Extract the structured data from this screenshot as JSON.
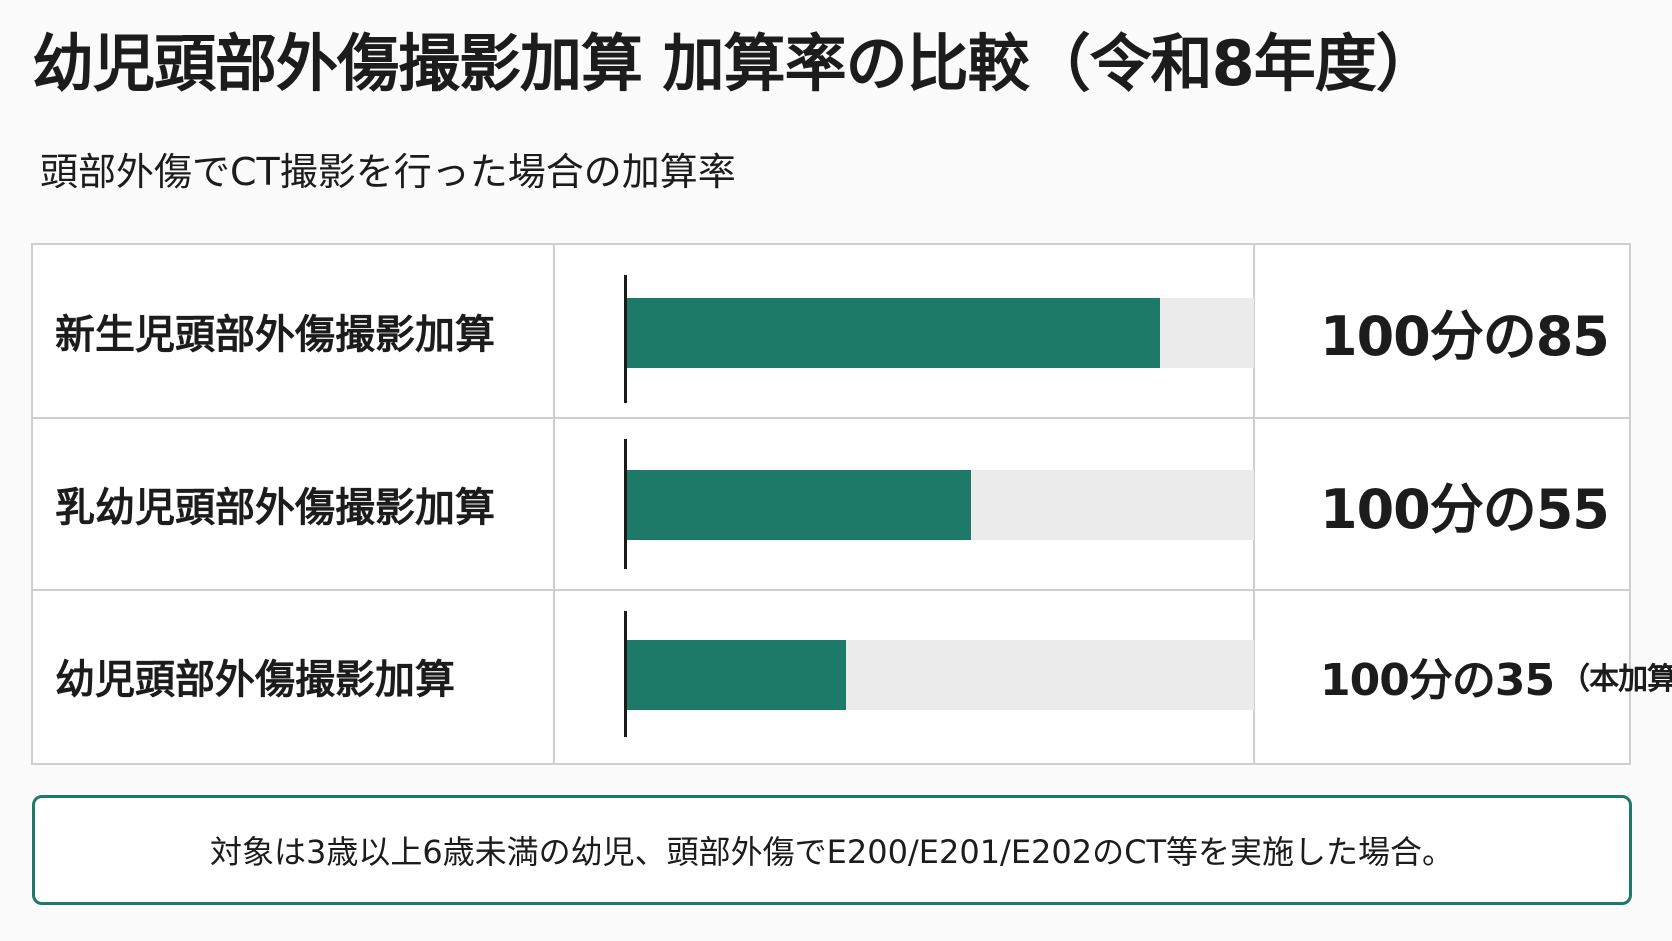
{
  "title": "幼児頭部外傷撮影加算 加算率の比較（令和8年度）",
  "subtitle": "頭部外傷でCT撮影を行った場合の加算率",
  "colors": {
    "bar": "#1e7a68",
    "track": "#ebebeb",
    "note_border": "#1e7a68"
  },
  "chart_data": {
    "type": "bar",
    "orientation": "horizontal",
    "categories": [
      "新生児頭部外傷撮影加算",
      "乳幼児頭部外傷撮影加算",
      "幼児頭部外傷撮影加算"
    ],
    "values": [
      85,
      55,
      35
    ],
    "xlim": [
      0,
      100
    ],
    "value_labels": [
      "100分の85",
      "100分の55",
      "100分の35"
    ],
    "value_notes": [
      "",
      "",
      "（本加算）"
    ]
  },
  "note": "対象は3歳以上6歳未満の幼児、頭部外傷でE200/E201/E202のCT等を実施した場合。"
}
